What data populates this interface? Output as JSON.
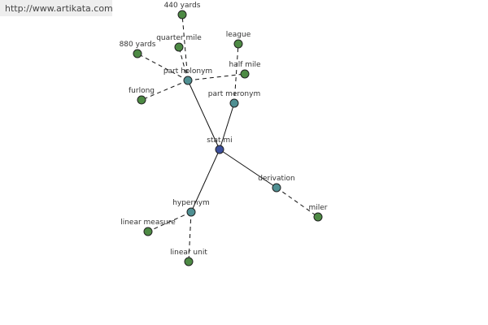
{
  "header": {
    "url": "http://www.artikata.com"
  },
  "nodes": [
    {
      "label": "stat mi"
    },
    {
      "label": "part holonym"
    },
    {
      "label": "part meronym"
    },
    {
      "label": "derivation"
    },
    {
      "label": "hypernym"
    },
    {
      "label": "440 yards"
    },
    {
      "label": "880 yards"
    },
    {
      "label": "quarter mile"
    },
    {
      "label": "league"
    },
    {
      "label": "half mile"
    },
    {
      "label": "furlong"
    },
    {
      "label": "miler"
    },
    {
      "label": "linear measure"
    },
    {
      "label": "linear unit"
    }
  ]
}
